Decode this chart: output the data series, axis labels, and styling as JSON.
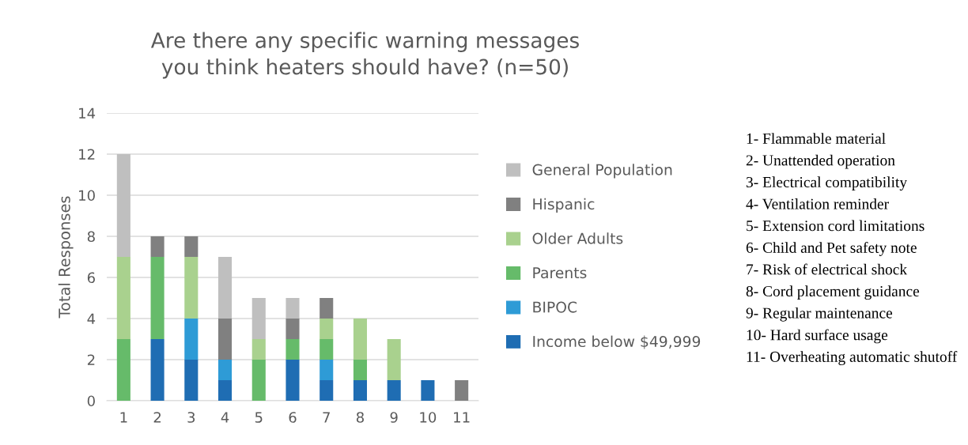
{
  "chart_data": {
    "type": "bar",
    "stacked": true,
    "title": "Are there any specific warning messages you think heaters should have? (n=50)",
    "ylabel": "Total Responses",
    "categories": [
      "1",
      "2",
      "3",
      "4",
      "5",
      "6",
      "7",
      "8",
      "9",
      "10",
      "11"
    ],
    "series": [
      {
        "name": "Income below $49,999",
        "color": "#1f6db3",
        "values": [
          0,
          3,
          2,
          1,
          0,
          2,
          1,
          1,
          1,
          1,
          0
        ]
      },
      {
        "name": "BIPOC",
        "color": "#2e9bd6",
        "values": [
          0,
          0,
          2,
          1,
          0,
          0,
          1,
          0,
          0,
          0,
          0
        ]
      },
      {
        "name": "Parents",
        "color": "#66bb6a",
        "values": [
          3,
          4,
          0,
          0,
          2,
          1,
          1,
          1,
          0,
          0,
          0
        ]
      },
      {
        "name": "Older Adults",
        "color": "#a9d18e",
        "values": [
          4,
          0,
          3,
          0,
          1,
          0,
          1,
          2,
          2,
          0,
          0
        ]
      },
      {
        "name": "Hispanic",
        "color": "#808080",
        "values": [
          0,
          1,
          1,
          2,
          0,
          1,
          1,
          0,
          0,
          0,
          1
        ]
      },
      {
        "name": "General Population",
        "color": "#bfbfbf",
        "values": [
          5,
          0,
          0,
          3,
          2,
          1,
          0,
          0,
          0,
          0,
          0
        ]
      }
    ],
    "ylim": [
      0,
      14
    ],
    "yticks": [
      0,
      2,
      4,
      6,
      8,
      10,
      12,
      14
    ],
    "grid": "y",
    "legend": "right",
    "annotations": [
      "1- Flammable material",
      "2- Unattended operation",
      "3- Electrical compatibility",
      "4- Ventilation reminder",
      "5- Extension cord limitations",
      "6- Child and Pet safety note",
      "7- Risk of electrical shock",
      "8- Cord placement guidance",
      "9- Regular maintenance",
      "10- Hard surface usage",
      "11- Overheating automatic shutoff"
    ]
  }
}
